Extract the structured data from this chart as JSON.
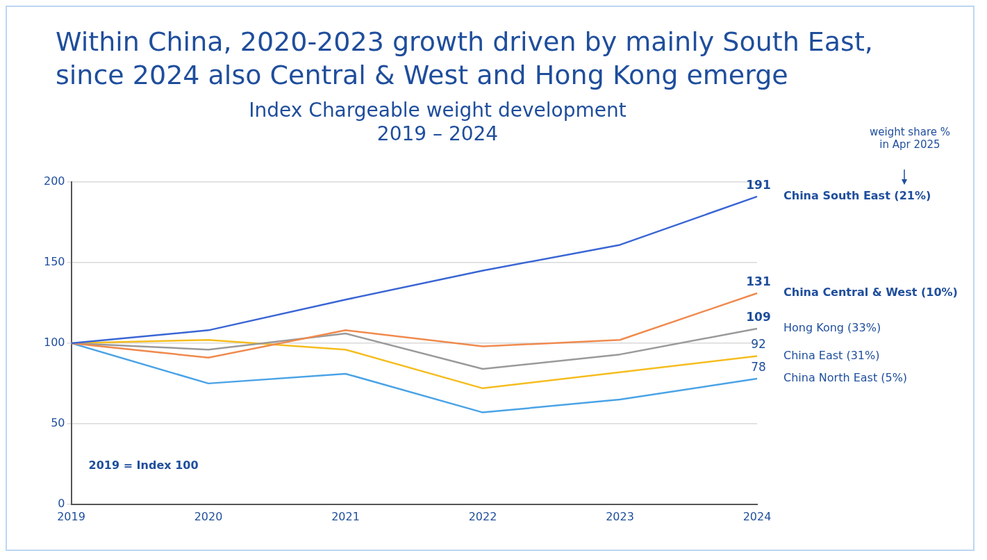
{
  "chart_data": {
    "type": "line",
    "title": "Within China, 2020-2023 growth driven by mainly South East, since 2024 also Central & West and Hong Kong emerge",
    "subtitle": "Index Chargeable weight development\n2019 – 2024",
    "categories": [
      "2019",
      "2020",
      "2021",
      "2022",
      "2023",
      "2024"
    ],
    "series": [
      {
        "name": "China South East (21%)",
        "color": "#3a66d4",
        "values": [
          100,
          108,
          127,
          145,
          161,
          191
        ],
        "value_labels": [
          null,
          null,
          null,
          null,
          null,
          "191"
        ]
      },
      {
        "name": "China Central & West (10%)",
        "color": "#ef8a4e",
        "values": [
          100,
          91,
          108,
          98,
          102,
          131
        ],
        "value_labels": [
          null,
          null,
          null,
          null,
          null,
          "131"
        ]
      },
      {
        "name": "Hong Kong (33%)",
        "color": "#9a9a9a",
        "values": [
          100,
          96,
          106,
          84,
          93,
          109
        ],
        "value_labels": [
          null,
          null,
          null,
          null,
          null,
          "109"
        ]
      },
      {
        "name": "China East (31%)",
        "color": "#f5bd1f",
        "values": [
          100,
          102,
          96,
          72,
          82,
          92
        ],
        "value_labels": [
          null,
          null,
          null,
          null,
          null,
          "92"
        ]
      },
      {
        "name": "China North East (5%)",
        "color": "#4aa3e6",
        "values": [
          100,
          75,
          81,
          57,
          65,
          78
        ],
        "value_labels": [
          null,
          null,
          null,
          null,
          null,
          "78"
        ]
      }
    ],
    "ylim": [
      0,
      200
    ],
    "yticks": [
      0,
      50,
      100,
      150,
      200
    ],
    "grid": "y",
    "marker": "none",
    "line_style": "solid",
    "annotations": [
      "weight share %\nin Apr 2025",
      "2019 = Index 100"
    ]
  }
}
